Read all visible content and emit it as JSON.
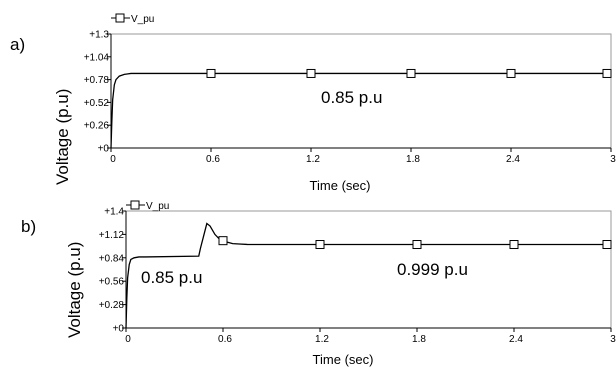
{
  "chart_data": [
    {
      "type": "line",
      "panel_label": "a)",
      "xlabel": "Time (sec)",
      "ylabel": "Voltage (p.u)",
      "xlim": [
        0,
        3
      ],
      "ylim": [
        0,
        1.3
      ],
      "x_ticks": [
        "0",
        "0.6",
        "1.2",
        "1.8",
        "2.4",
        "3"
      ],
      "y_ticks": [
        "+0",
        "+0.26",
        "+0.52",
        "+0.78",
        "+1.04",
        "+1.3"
      ],
      "legend": {
        "label": "V_pu",
        "position": "top-left"
      },
      "annotation": "0.85 p.u",
      "series": [
        {
          "name": "V_pu",
          "marker": "square",
          "x": [
            0,
            0.005,
            0.01,
            0.02,
            0.03,
            0.05,
            0.08,
            0.12,
            0.3,
            3.0
          ],
          "y": [
            0,
            0.3,
            0.55,
            0.72,
            0.78,
            0.82,
            0.84,
            0.85,
            0.85,
            0.85
          ],
          "marker_x": [
            0.6,
            1.2,
            1.8,
            2.4,
            3.0
          ]
        }
      ]
    },
    {
      "type": "line",
      "panel_label": "b)",
      "xlabel": "Time (sec)",
      "ylabel": "Voltage (p.u)",
      "xlim": [
        0,
        3
      ],
      "ylim": [
        0,
        1.4
      ],
      "x_ticks": [
        "0",
        "0.6",
        "1.2",
        "1.8",
        "2.4",
        "3"
      ],
      "y_ticks": [
        "+0",
        "+0.28",
        "+0.56",
        "+0.84",
        "+1.12",
        "+1.4"
      ],
      "legend": {
        "label": "V_pu",
        "position": "top-left"
      },
      "annotations": [
        "0.85 p.u",
        "0.999 p.u"
      ],
      "series": [
        {
          "name": "V_pu",
          "marker": "square",
          "x": [
            0,
            0.005,
            0.01,
            0.02,
            0.03,
            0.05,
            0.08,
            0.12,
            0.45,
            0.46,
            0.48,
            0.5,
            0.52,
            0.55,
            0.58,
            0.62,
            0.66,
            0.7,
            0.75,
            0.8,
            0.9,
            3.0
          ],
          "y": [
            0,
            0.35,
            0.6,
            0.76,
            0.82,
            0.84,
            0.85,
            0.85,
            0.86,
            0.95,
            1.1,
            1.25,
            1.22,
            1.12,
            1.06,
            1.03,
            1.01,
            1.005,
            1.0,
            0.999,
            0.999,
            0.999
          ],
          "marker_x": [
            0.6,
            1.2,
            1.8,
            2.4,
            3.0
          ]
        }
      ]
    }
  ]
}
